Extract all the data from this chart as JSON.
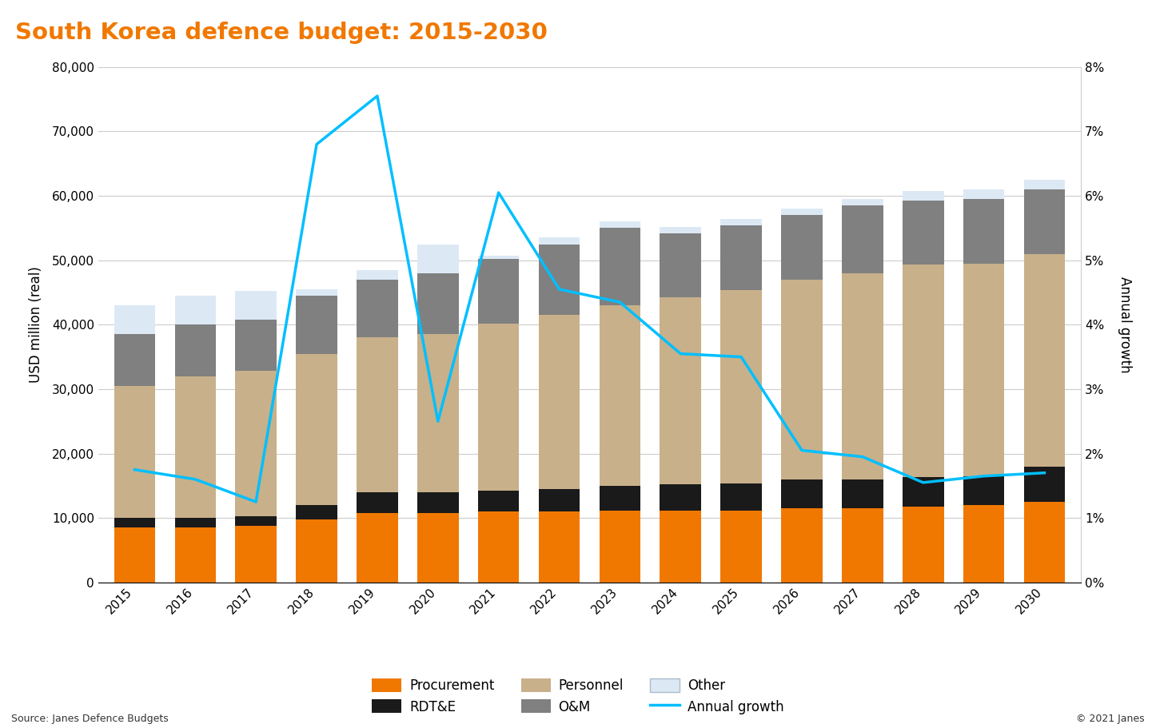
{
  "years": [
    2015,
    2016,
    2017,
    2018,
    2019,
    2020,
    2021,
    2022,
    2023,
    2024,
    2025,
    2026,
    2027,
    2028,
    2029,
    2030
  ],
  "procurement": [
    8500,
    8500,
    8800,
    9800,
    10800,
    10800,
    11000,
    11000,
    11200,
    11200,
    11200,
    11500,
    11500,
    11800,
    12000,
    12500
  ],
  "rdte": [
    1500,
    1500,
    1500,
    2200,
    3200,
    3200,
    3200,
    3500,
    3800,
    4000,
    4200,
    4500,
    4500,
    4500,
    4500,
    5500
  ],
  "personnel": [
    20500,
    22000,
    22500,
    23500,
    24000,
    24500,
    26000,
    27000,
    28000,
    29000,
    30000,
    31000,
    32000,
    33000,
    33000,
    33000
  ],
  "om": [
    8000,
    8000,
    8000,
    9000,
    9000,
    9500,
    10000,
    11000,
    12000,
    10000,
    10000,
    10000,
    10500,
    10000,
    10000,
    10000
  ],
  "other": [
    4500,
    4500,
    4500,
    1000,
    1500,
    4500,
    500,
    1000,
    1000,
    1000,
    1000,
    1000,
    1000,
    1500,
    1500,
    1500
  ],
  "annual_growth": [
    1.75,
    1.6,
    1.25,
    6.8,
    7.55,
    2.5,
    6.05,
    4.55,
    4.35,
    3.55,
    3.5,
    2.05,
    1.95,
    1.55,
    1.65,
    1.7
  ],
  "title": "South Korea defence budget: 2015-2030",
  "ylabel_left": "USD million (real)",
  "ylabel_right": "Annual growth",
  "ylim_left": [
    0,
    80000
  ],
  "ylim_right": [
    0,
    8
  ],
  "yticks_left": [
    0,
    10000,
    20000,
    30000,
    40000,
    50000,
    60000,
    70000,
    80000
  ],
  "ytick_labels_left": [
    "0",
    "10,000",
    "20,000",
    "30,000",
    "40,000",
    "50,000",
    "60,000",
    "70,000",
    "80,000"
  ],
  "yticks_right": [
    0,
    1,
    2,
    3,
    4,
    5,
    6,
    7,
    8
  ],
  "ytick_labels_right": [
    "0%",
    "1%",
    "2%",
    "3%",
    "4%",
    "5%",
    "6%",
    "7%",
    "8%"
  ],
  "color_procurement": "#f07800",
  "color_rdte": "#1a1a1a",
  "color_personnel": "#c8b08a",
  "color_om": "#808080",
  "color_other": "#dce9f5",
  "color_growth_line": "#00bfff",
  "title_bg_color": "#1c1c1c",
  "title_text_color": "#f07800",
  "source_text": "Source: Janes Defence Budgets",
  "copyright_text": "© 2021 Janes",
  "plot_bg_color": "#ffffff",
  "grid_color": "#cccccc",
  "spine_color": "#cccccc"
}
